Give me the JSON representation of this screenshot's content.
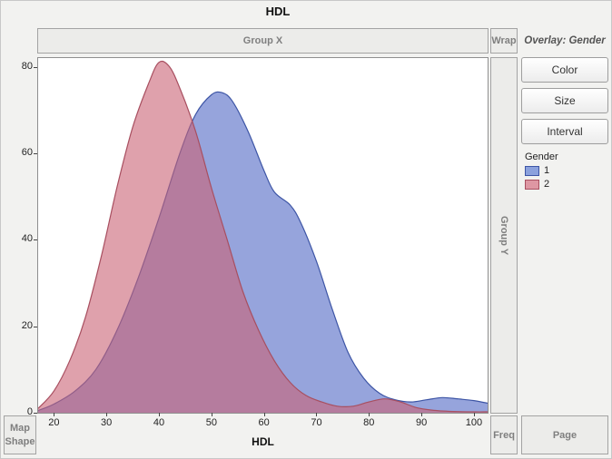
{
  "title": "HDL",
  "zones": {
    "group_x": "Group X",
    "wrap": "Wrap",
    "group_y": "Group Y",
    "freq": "Freq",
    "page": "Page",
    "map_shape": "Map Shape",
    "overlay": "Overlay: Gender"
  },
  "buttons": {
    "color": "Color",
    "size": "Size",
    "interval": "Interval"
  },
  "legend": {
    "title": "Gender",
    "items": [
      {
        "label": "1",
        "fill": "#8ba1dd",
        "border": "#3d55a5"
      },
      {
        "label": "2",
        "fill": "#de97a3",
        "border": "#a84f60"
      }
    ]
  },
  "axes": {
    "x_label": "HDL",
    "x_ticks": [
      20,
      30,
      40,
      50,
      60,
      70,
      80,
      90,
      100
    ],
    "y_ticks": [
      0,
      20,
      40,
      60,
      80
    ],
    "x_domain": [
      17,
      102.6
    ],
    "y_domain": [
      0,
      82
    ]
  },
  "chart_data": {
    "type": "area",
    "title": "HDL",
    "xlabel": "HDL",
    "ylabel": "",
    "xlim": [
      17,
      102.6
    ],
    "ylim": [
      0,
      82
    ],
    "legend_position": "right",
    "grid": false,
    "series": [
      {
        "name": "1",
        "fill": "#5068c5",
        "stroke": "#3d55a5",
        "fill_opacity": 0.6,
        "x": [
          17,
          20,
          24,
          28,
          32,
          36,
          40,
          44,
          47,
          50,
          52,
          54,
          57,
          60,
          62,
          65,
          67,
          70,
          73,
          76,
          79,
          82,
          85,
          88,
          91,
          94,
          97,
          100,
          102.6
        ],
        "y": [
          0.5,
          2,
          5,
          10,
          19,
          31,
          45,
          60,
          69,
          73.5,
          74,
          72,
          65,
          56,
          51,
          48,
          44,
          35,
          24,
          14,
          8,
          4.5,
          3,
          2.5,
          3,
          3.5,
          3.2,
          2.8,
          2.2
        ]
      },
      {
        "name": "2",
        "fill": "#ca6375",
        "stroke": "#a84f60",
        "fill_opacity": 0.6,
        "x": [
          17,
          20,
          23,
          26,
          29,
          32,
          35,
          38,
          40,
          42,
          44,
          47,
          50,
          53,
          56,
          59,
          62,
          65,
          68,
          71,
          74,
          77,
          80,
          83,
          86,
          89,
          92,
          96,
          100,
          102.6
        ],
        "y": [
          1,
          5,
          12,
          22,
          36,
          52,
          66,
          76,
          81,
          80,
          75,
          65,
          52,
          40,
          28,
          19,
          12,
          7,
          4,
          2.5,
          1.5,
          1.5,
          2.5,
          3.2,
          2.5,
          1.2,
          0.6,
          0.3,
          0.2,
          0.2
        ]
      }
    ]
  }
}
